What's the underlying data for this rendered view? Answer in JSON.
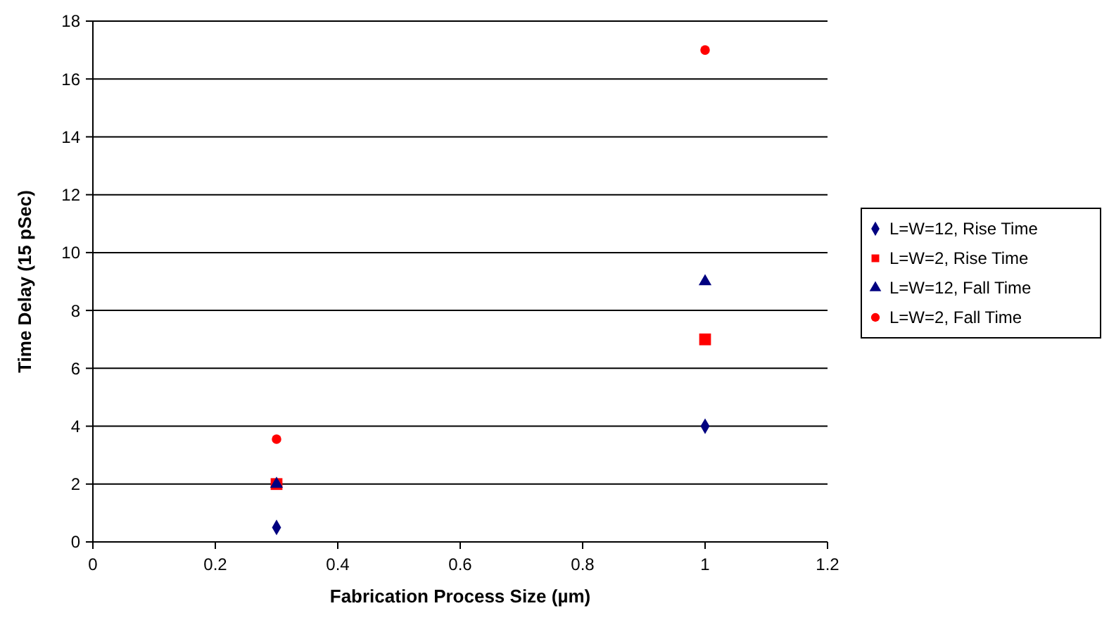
{
  "chart_data": {
    "type": "scatter",
    "xlabel": "Fabrication Process Size (µm)",
    "ylabel": "Time Delay (15 pSec)",
    "x": [
      0.3,
      1
    ],
    "xlim": [
      0,
      1.2
    ],
    "xticks": [
      0,
      0.2,
      0.4,
      0.6,
      0.8,
      1,
      1.2
    ],
    "ylim": [
      0,
      18
    ],
    "yticks": [
      0,
      2,
      4,
      6,
      8,
      10,
      12,
      14,
      16,
      18
    ],
    "grid": "y",
    "legend": "right",
    "series": [
      {
        "name": "L=W=12, Rise Time",
        "color": "#000080",
        "marker": "diamond",
        "values": [
          0.5,
          4
        ]
      },
      {
        "name": "L=W=2, Rise Time",
        "color": "#ff0000",
        "marker": "square",
        "values": [
          2,
          7
        ]
      },
      {
        "name": "L=W=12, Fall Time",
        "color": "#000080",
        "marker": "triangle",
        "values": [
          2,
          9
        ]
      },
      {
        "name": "L=W=2, Fall Time",
        "color": "#ff0000",
        "marker": "circle",
        "values": [
          3.55,
          17
        ]
      }
    ]
  }
}
